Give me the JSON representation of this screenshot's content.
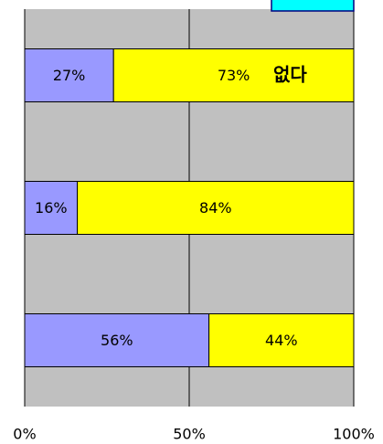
{
  "chart_data": {
    "type": "stacked_barh",
    "categories": [
      null,
      null,
      null
    ],
    "series": [
      {
        "color": "#9999ff",
        "values": [
          27,
          16,
          56
        ],
        "value_labels": [
          "27%",
          "16%",
          "56%"
        ]
      },
      {
        "color": "#ffff00",
        "values": [
          73,
          84,
          44
        ],
        "value_labels": [
          "73%",
          "84%",
          "44%"
        ]
      }
    ],
    "xlim": [
      0,
      100
    ],
    "xticks": [
      {
        "value": 0,
        "label": "0%"
      },
      {
        "value": 50,
        "label": "50%"
      },
      {
        "value": 100,
        "label": "100%"
      }
    ],
    "grid": true,
    "annotation": "없다"
  }
}
